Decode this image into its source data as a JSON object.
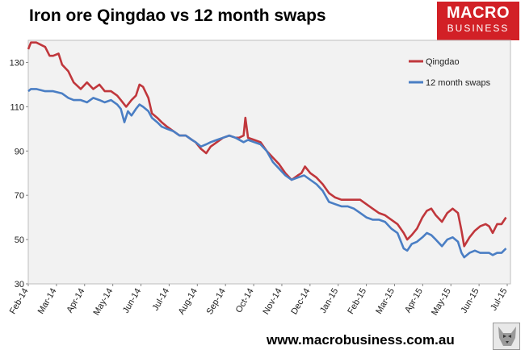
{
  "title": "Iron ore Qingdao vs 12 month swaps",
  "logo": {
    "line1": "MACRO",
    "line2": "BUSINESS"
  },
  "footer_url": "www.macrobusiness.com.au",
  "colors": {
    "qingdao": "#c0373c",
    "swaps": "#4a7ec4",
    "plot_bg": "#f2f2f2"
  },
  "chart_data": {
    "type": "line",
    "title": "Iron ore Qingdao vs 12 month swaps",
    "ylim": [
      30,
      140
    ],
    "yticks": [
      30,
      50,
      70,
      90,
      110,
      130
    ],
    "grid": false,
    "legend_position": "top-right",
    "x_tick_labels": [
      "Feb-14",
      "Mar-14",
      "Apr-14",
      "May-14",
      "Jun-14",
      "Jul-14",
      "Aug-14",
      "Sep-14",
      "Oct-14",
      "Nov-14",
      "Dec-14",
      "Jan-15",
      "Feb-15",
      "Mar-15",
      "Apr-15",
      "May-15",
      "Jun-15",
      "Jul-15"
    ],
    "series": [
      {
        "name": "Qingdao",
        "color": "#c0373c",
        "points": [
          [
            "2014-02-01",
            136
          ],
          [
            "2014-02-04",
            139
          ],
          [
            "2014-02-10",
            139
          ],
          [
            "2014-02-20",
            137
          ],
          [
            "2014-02-25",
            133
          ],
          [
            "2014-03-01",
            133
          ],
          [
            "2014-03-07",
            134
          ],
          [
            "2014-03-11",
            129
          ],
          [
            "2014-03-18",
            126
          ],
          [
            "2014-03-24",
            121
          ],
          [
            "2014-04-01",
            118
          ],
          [
            "2014-04-08",
            121
          ],
          [
            "2014-04-15",
            118
          ],
          [
            "2014-04-22",
            120
          ],
          [
            "2014-04-28",
            117
          ],
          [
            "2014-05-05",
            117
          ],
          [
            "2014-05-12",
            115
          ],
          [
            "2014-05-16",
            113
          ],
          [
            "2014-05-22",
            110
          ],
          [
            "2014-05-28",
            113
          ],
          [
            "2014-06-02",
            115
          ],
          [
            "2014-06-06",
            120
          ],
          [
            "2014-06-10",
            119
          ],
          [
            "2014-06-16",
            114
          ],
          [
            "2014-06-20",
            107
          ],
          [
            "2014-06-26",
            105
          ],
          [
            "2014-07-01",
            103
          ],
          [
            "2014-07-07",
            101
          ],
          [
            "2014-07-14",
            99
          ],
          [
            "2014-07-21",
            97
          ],
          [
            "2014-07-28",
            97
          ],
          [
            "2014-08-04",
            95
          ],
          [
            "2014-08-08",
            94
          ],
          [
            "2014-08-14",
            91
          ],
          [
            "2014-08-20",
            89
          ],
          [
            "2014-08-25",
            92
          ],
          [
            "2014-09-01",
            94
          ],
          [
            "2014-09-08",
            96
          ],
          [
            "2014-09-15",
            97
          ],
          [
            "2014-09-22",
            96
          ],
          [
            "2014-09-26",
            96
          ],
          [
            "2014-10-01",
            97
          ],
          [
            "2014-10-03",
            105
          ],
          [
            "2014-10-06",
            96
          ],
          [
            "2014-10-13",
            95
          ],
          [
            "2014-10-20",
            94
          ],
          [
            "2014-10-27",
            90
          ],
          [
            "2014-11-03",
            87
          ],
          [
            "2014-11-10",
            84
          ],
          [
            "2014-11-17",
            80
          ],
          [
            "2014-11-24",
            77
          ],
          [
            "2014-12-01",
            79
          ],
          [
            "2014-12-05",
            80
          ],
          [
            "2014-12-09",
            83
          ],
          [
            "2014-12-15",
            80
          ],
          [
            "2014-12-22",
            78
          ],
          [
            "2014-12-29",
            75
          ],
          [
            "2015-01-05",
            71
          ],
          [
            "2015-01-12",
            69
          ],
          [
            "2015-01-19",
            68
          ],
          [
            "2015-01-26",
            68
          ],
          [
            "2015-02-02",
            68
          ],
          [
            "2015-02-09",
            68
          ],
          [
            "2015-02-16",
            66
          ],
          [
            "2015-02-23",
            64
          ],
          [
            "2015-03-02",
            62
          ],
          [
            "2015-03-09",
            61
          ],
          [
            "2015-03-16",
            59
          ],
          [
            "2015-03-23",
            57
          ],
          [
            "2015-03-30",
            53
          ],
          [
            "2015-04-03",
            50
          ],
          [
            "2015-04-08",
            52
          ],
          [
            "2015-04-14",
            55
          ],
          [
            "2015-04-20",
            60
          ],
          [
            "2015-04-25",
            63
          ],
          [
            "2015-04-30",
            64
          ],
          [
            "2015-05-05",
            61
          ],
          [
            "2015-05-12",
            58
          ],
          [
            "2015-05-18",
            62
          ],
          [
            "2015-05-24",
            64
          ],
          [
            "2015-05-30",
            62
          ],
          [
            "2015-06-03",
            54
          ],
          [
            "2015-06-06",
            47
          ],
          [
            "2015-06-12",
            51
          ],
          [
            "2015-06-18",
            54
          ],
          [
            "2015-06-24",
            56
          ],
          [
            "2015-06-30",
            57
          ],
          [
            "2015-07-04",
            56
          ],
          [
            "2015-07-08",
            53
          ],
          [
            "2015-07-13",
            57
          ],
          [
            "2015-07-18",
            57
          ],
          [
            "2015-07-23",
            60
          ]
        ]
      },
      {
        "name": "12 month swaps",
        "color": "#4a7ec4",
        "points": [
          [
            "2014-02-01",
            117
          ],
          [
            "2014-02-04",
            118
          ],
          [
            "2014-02-10",
            118
          ],
          [
            "2014-02-20",
            117
          ],
          [
            "2014-03-01",
            117
          ],
          [
            "2014-03-11",
            116
          ],
          [
            "2014-03-18",
            114
          ],
          [
            "2014-03-24",
            113
          ],
          [
            "2014-04-01",
            113
          ],
          [
            "2014-04-08",
            112
          ],
          [
            "2014-04-15",
            114
          ],
          [
            "2014-04-22",
            113
          ],
          [
            "2014-04-28",
            112
          ],
          [
            "2014-05-05",
            113
          ],
          [
            "2014-05-12",
            111
          ],
          [
            "2014-05-16",
            109
          ],
          [
            "2014-05-20",
            103
          ],
          [
            "2014-05-24",
            108
          ],
          [
            "2014-05-28",
            106
          ],
          [
            "2014-06-02",
            109
          ],
          [
            "2014-06-06",
            111
          ],
          [
            "2014-06-10",
            110
          ],
          [
            "2014-06-16",
            108
          ],
          [
            "2014-06-20",
            105
          ],
          [
            "2014-06-26",
            103
          ],
          [
            "2014-07-01",
            101
          ],
          [
            "2014-07-07",
            100
          ],
          [
            "2014-07-14",
            99
          ],
          [
            "2014-07-21",
            97
          ],
          [
            "2014-07-28",
            97
          ],
          [
            "2014-08-04",
            95
          ],
          [
            "2014-08-08",
            94
          ],
          [
            "2014-08-14",
            92
          ],
          [
            "2014-08-20",
            93
          ],
          [
            "2014-08-25",
            94
          ],
          [
            "2014-09-01",
            95
          ],
          [
            "2014-09-08",
            96
          ],
          [
            "2014-09-15",
            97
          ],
          [
            "2014-09-22",
            96
          ],
          [
            "2014-10-01",
            94
          ],
          [
            "2014-10-06",
            95
          ],
          [
            "2014-10-13",
            94
          ],
          [
            "2014-10-20",
            93
          ],
          [
            "2014-10-27",
            90
          ],
          [
            "2014-11-03",
            85
          ],
          [
            "2014-11-10",
            82
          ],
          [
            "2014-11-17",
            79
          ],
          [
            "2014-11-24",
            77
          ],
          [
            "2014-12-01",
            78
          ],
          [
            "2014-12-08",
            79
          ],
          [
            "2014-12-15",
            77
          ],
          [
            "2014-12-22",
            75
          ],
          [
            "2014-12-29",
            72
          ],
          [
            "2015-01-05",
            67
          ],
          [
            "2015-01-12",
            66
          ],
          [
            "2015-01-19",
            65
          ],
          [
            "2015-01-26",
            65
          ],
          [
            "2015-02-02",
            64
          ],
          [
            "2015-02-09",
            62
          ],
          [
            "2015-02-16",
            60
          ],
          [
            "2015-02-23",
            59
          ],
          [
            "2015-03-02",
            59
          ],
          [
            "2015-03-09",
            58
          ],
          [
            "2015-03-16",
            55
          ],
          [
            "2015-03-23",
            53
          ],
          [
            "2015-03-30",
            46
          ],
          [
            "2015-04-03",
            45
          ],
          [
            "2015-04-08",
            48
          ],
          [
            "2015-04-14",
            49
          ],
          [
            "2015-04-20",
            51
          ],
          [
            "2015-04-25",
            53
          ],
          [
            "2015-04-30",
            52
          ],
          [
            "2015-05-05",
            50
          ],
          [
            "2015-05-12",
            47
          ],
          [
            "2015-05-18",
            50
          ],
          [
            "2015-05-24",
            51
          ],
          [
            "2015-05-30",
            49
          ],
          [
            "2015-06-03",
            44
          ],
          [
            "2015-06-06",
            42
          ],
          [
            "2015-06-12",
            44
          ],
          [
            "2015-06-18",
            45
          ],
          [
            "2015-06-24",
            44
          ],
          [
            "2015-06-30",
            44
          ],
          [
            "2015-07-04",
            44
          ],
          [
            "2015-07-08",
            43
          ],
          [
            "2015-07-13",
            44
          ],
          [
            "2015-07-18",
            44
          ],
          [
            "2015-07-23",
            46
          ]
        ]
      }
    ]
  }
}
